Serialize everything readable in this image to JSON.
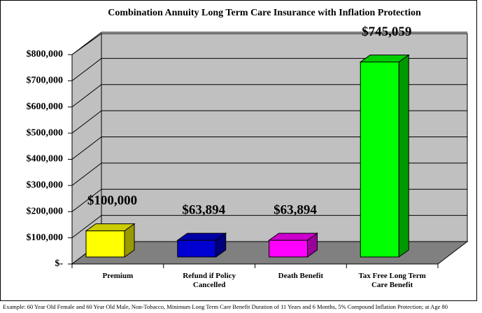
{
  "chart_data": {
    "type": "bar3d",
    "title": "Combination Annuity Long Term Care Insurance with Inflation Protection",
    "categories": [
      "Premium",
      "Refund if Policy Cancelled",
      "Death Benefit",
      "Tax Free Long Term Care Benefit"
    ],
    "values": [
      100000,
      63894,
      63894,
      745059
    ],
    "value_labels": [
      "$100,000",
      "$63,894",
      "$63,894",
      "$745,059"
    ],
    "colors": [
      "#ffff00",
      "#0000d0",
      "#ff00ff",
      "#00ff00"
    ],
    "ylim": [
      0,
      800000
    ],
    "yticks": [
      {
        "value": 0,
        "label": "$-"
      },
      {
        "value": 100000,
        "label": "$100,000"
      },
      {
        "value": 200000,
        "label": "$200,000"
      },
      {
        "value": 300000,
        "label": "$300,000"
      },
      {
        "value": 400000,
        "label": "$400,000"
      },
      {
        "value": 500000,
        "label": "$500,000"
      },
      {
        "value": 600000,
        "label": "$600,000"
      },
      {
        "value": 700000,
        "label": "$700,000"
      },
      {
        "value": 800000,
        "label": "$800,000"
      }
    ],
    "grid": true,
    "footnote": "Example: 60 Year Old Female and 60 Year Old Male, Non-Tobacco, Minimum Long Term Care Benefit Duration of 11 Years and 6 Months, 5% Compound Inflation Protection; at Age 80"
  }
}
